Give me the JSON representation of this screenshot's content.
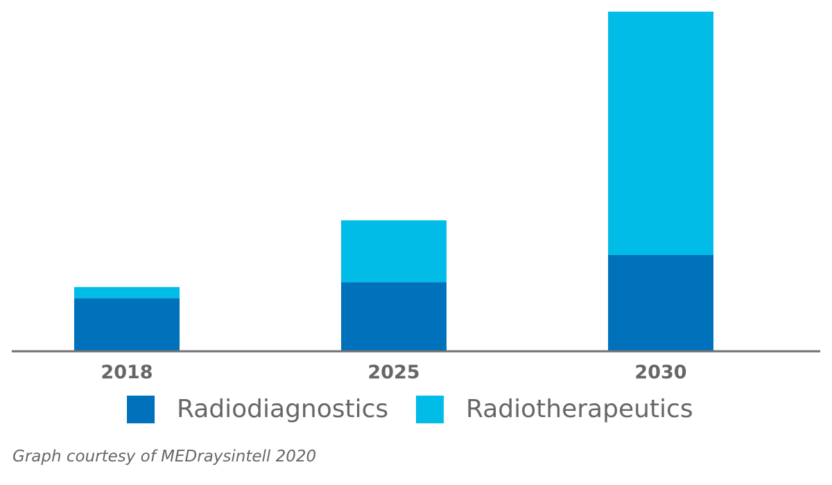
{
  "chart_data": {
    "type": "bar",
    "stacked": true,
    "categories": [
      "2018",
      "2025",
      "2030"
    ],
    "series": [
      {
        "name": "Radiodiagnostics",
        "color": "#0072bc",
        "values": [
          4.3,
          5.6,
          7.8
        ]
      },
      {
        "name": "Radiotherapeutics",
        "color": "#00bce7",
        "values": [
          0.9,
          5.0,
          19.7
        ]
      }
    ],
    "title": "",
    "xlabel": "",
    "ylabel": "",
    "ylim": [
      0,
      27.6
    ],
    "axes": {
      "y_axis_visible": false,
      "grid": false,
      "baseline_color": "#707070"
    },
    "legend_position": "bottom"
  },
  "source_note": "Graph courtesy of MEDraysintell 2020",
  "colors": {
    "tick_text": "#666666",
    "baseline": "#707070"
  }
}
